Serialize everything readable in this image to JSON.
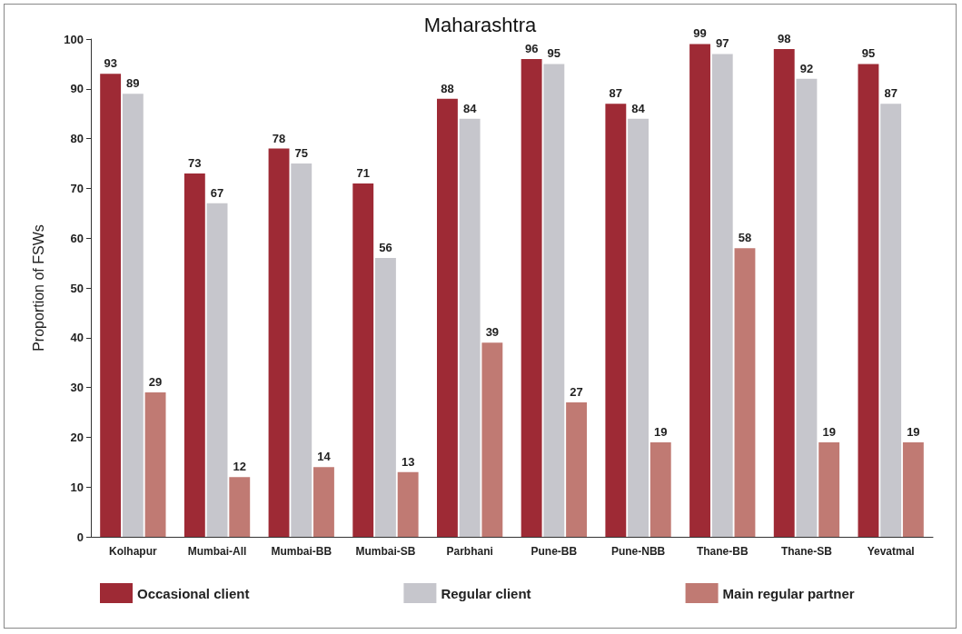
{
  "chart_data": {
    "type": "bar",
    "title": "Maharashtra",
    "ylabel": "Proportion of FSWs",
    "categories": [
      "Kolhapur",
      "Mumbai-All",
      "Mumbai-BB",
      "Mumbai-SB",
      "Parbhani",
      "Pune-BB",
      "Pune-NBB",
      "Thane-BB",
      "Thane-SB",
      "Yevatmal"
    ],
    "series": [
      {
        "name": "Occasional client",
        "color": "#9e2a35",
        "values": [
          93,
          73,
          78,
          71,
          88,
          96,
          87,
          99,
          98,
          95
        ]
      },
      {
        "name": "Regular client",
        "color": "#c6c6cc",
        "values": [
          89,
          67,
          75,
          56,
          84,
          95,
          84,
          97,
          92,
          87
        ]
      },
      {
        "name": "Main regular partner",
        "color": "#c07a73",
        "values": [
          29,
          12,
          14,
          13,
          39,
          27,
          19,
          58,
          19,
          19
        ]
      }
    ],
    "ylim": [
      0,
      100
    ],
    "yticks": [
      0,
      10,
      20,
      30,
      40,
      50,
      60,
      70,
      80,
      90,
      100
    ],
    "grid": false,
    "legend": "bottom",
    "data_labels": true
  }
}
